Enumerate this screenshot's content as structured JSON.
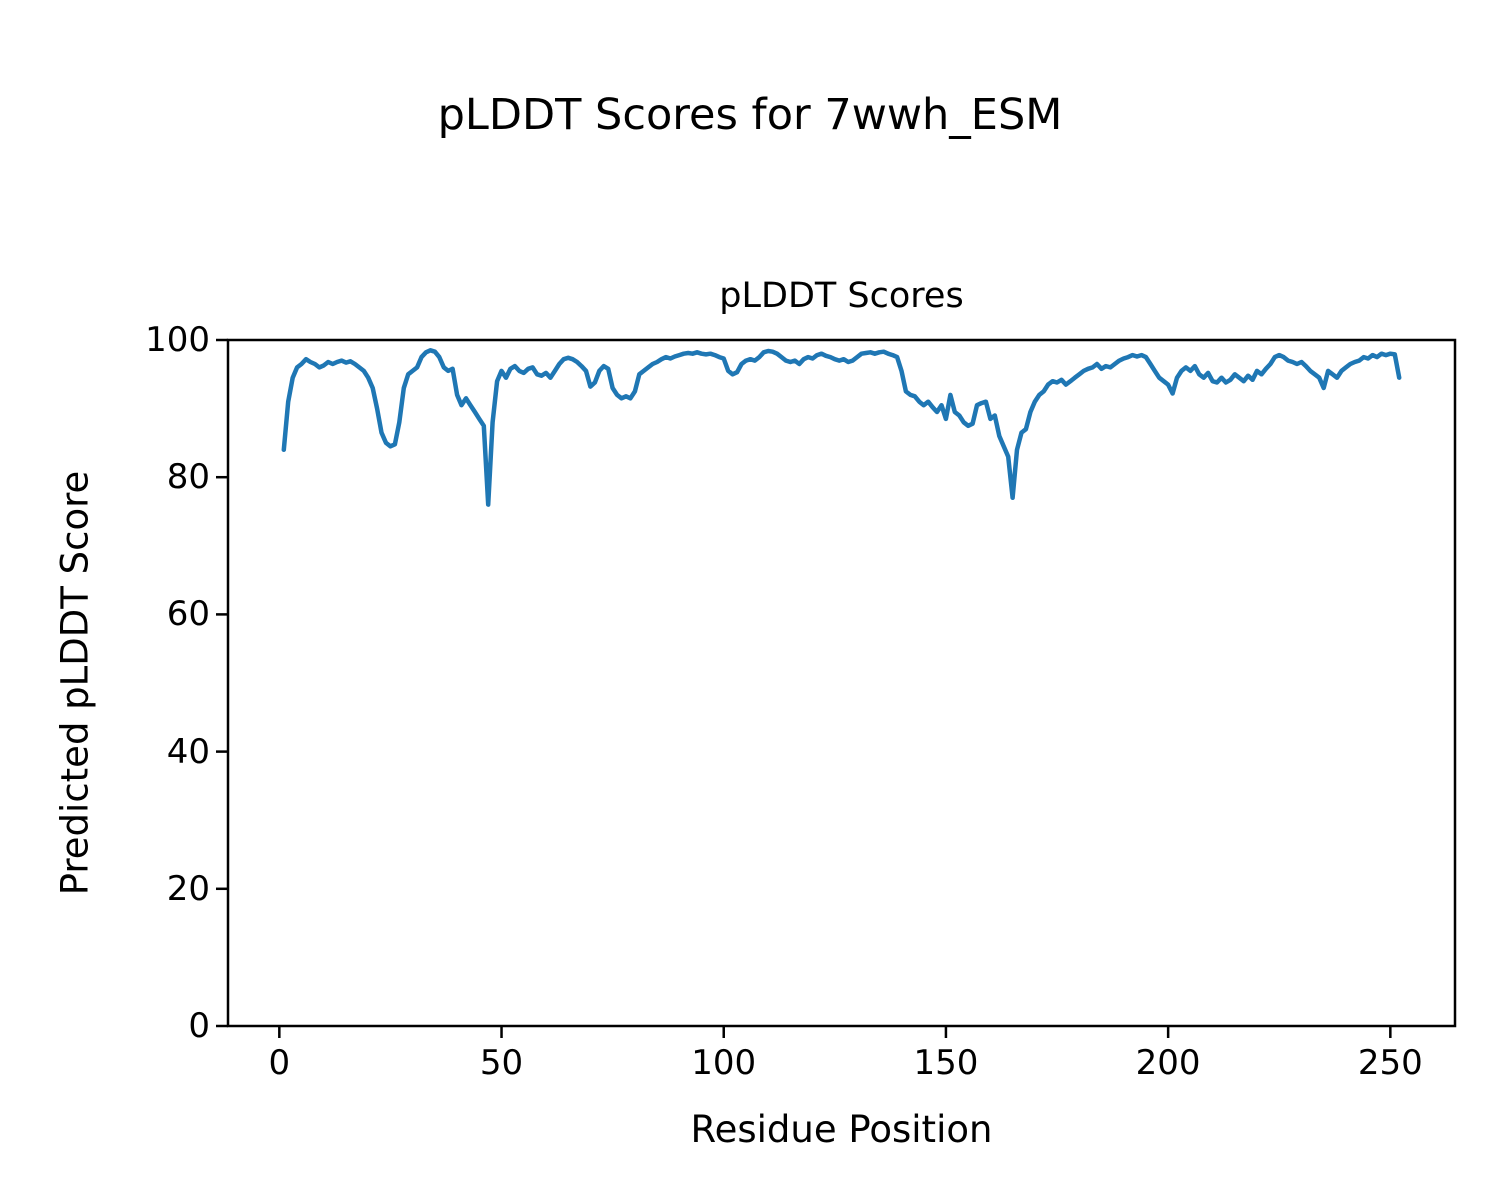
{
  "chart_data": {
    "type": "line",
    "suptitle": "pLDDT Scores for 7wwh_ESM",
    "title": "pLDDT Scores",
    "xlabel": "Residue Position",
    "ylabel": "Predicted pLDDT Score",
    "xticks": [
      0,
      50,
      100,
      150,
      200,
      250
    ],
    "yticks": [
      0,
      20,
      40,
      60,
      80,
      100
    ],
    "xlim": [
      -11.55,
      264.55
    ],
    "ylim": [
      0,
      100
    ],
    "line_color": "#1f77b4",
    "grid": false,
    "legend": "none",
    "x_start": 1,
    "values": [
      84,
      91,
      94.5,
      96,
      96.5,
      97.2,
      96.8,
      96.5,
      96,
      96.3,
      96.8,
      96.5,
      96.8,
      97,
      96.7,
      96.9,
      96.5,
      96,
      95.5,
      94.5,
      93,
      90,
      86.5,
      85,
      84.5,
      84.8,
      88,
      93,
      95,
      95.5,
      96,
      97.5,
      98.2,
      98.5,
      98.3,
      97.5,
      96,
      95.5,
      95.8,
      92,
      90.5,
      91.5,
      90.5,
      89.5,
      88.5,
      87.5,
      76,
      88,
      94,
      95.5,
      94.5,
      95.8,
      96.2,
      95.5,
      95.2,
      95.8,
      96,
      95,
      94.8,
      95.2,
      94.5,
      95.5,
      96.5,
      97.2,
      97.4,
      97.2,
      96.8,
      96.2,
      95.5,
      93.2,
      93.8,
      95.5,
      96.2,
      95.8,
      93,
      92,
      91.5,
      91.8,
      91.5,
      92.5,
      95,
      95.5,
      96,
      96.5,
      96.8,
      97.2,
      97.5,
      97.3,
      97.6,
      97.8,
      98,
      98.1,
      98,
      98.2,
      98,
      97.9,
      98,
      97.8,
      97.5,
      97.3,
      95.5,
      95,
      95.3,
      96.5,
      97,
      97.2,
      97,
      97.5,
      98.2,
      98.4,
      98.3,
      98,
      97.5,
      97,
      96.8,
      97,
      96.5,
      97.2,
      97.5,
      97.3,
      97.8,
      98,
      97.7,
      97.5,
      97.2,
      97,
      97.2,
      96.8,
      97,
      97.5,
      98,
      98.1,
      98.2,
      98,
      98.2,
      98.3,
      98,
      97.8,
      97.5,
      95.5,
      92.5,
      92,
      91.8,
      91,
      90.5,
      91,
      90.2,
      89.5,
      90.5,
      88.5,
      92,
      89.5,
      89,
      88,
      87.5,
      87.8,
      90.5,
      90.8,
      91,
      88.5,
      89,
      86,
      84.5,
      83,
      77,
      84,
      86.5,
      87,
      89.5,
      91,
      92,
      92.5,
      93.5,
      94,
      93.8,
      94.2,
      93.5,
      94,
      94.5,
      95,
      95.5,
      95.8,
      96,
      96.5,
      95.8,
      96.2,
      96,
      96.5,
      97,
      97.3,
      97.5,
      97.8,
      97.6,
      97.8,
      97.5,
      96.5,
      95.5,
      94.5,
      94,
      93.5,
      92.2,
      94.5,
      95.5,
      96,
      95.5,
      96.2,
      95,
      94.5,
      95.2,
      94,
      93.8,
      94.5,
      93.8,
      94.2,
      95,
      94.5,
      94,
      94.8,
      94.2,
      95.5,
      95,
      95.8,
      96.5,
      97.5,
      97.8,
      97.5,
      97,
      96.8,
      96.5,
      96.8,
      96.2,
      95.5,
      95,
      94.5,
      93,
      95.5,
      95,
      94.5,
      95.5,
      96,
      96.5,
      96.8,
      97,
      97.5,
      97.3,
      97.8,
      97.5,
      98,
      97.8,
      98,
      97.9,
      94.5
    ]
  }
}
